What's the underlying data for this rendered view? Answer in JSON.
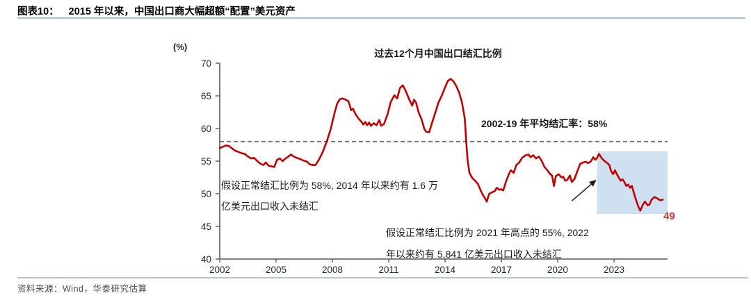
{
  "header": {
    "label": "图表10：",
    "title": "2015 年以来，中国出口商大幅超额“配置”美元资产"
  },
  "footer": {
    "source": "资料来源：Wind，华泰研究估算"
  },
  "chart_data": {
    "type": "line",
    "title": "过去12个月中国出口结汇比例",
    "unit_label": "(%)",
    "xlabel": "",
    "ylabel": "(%)",
    "xlim": [
      2002,
      2025.85
    ],
    "ylim": [
      40,
      70
    ],
    "x_ticks": [
      2002,
      2005,
      2008,
      2011,
      2014,
      2017,
      2020,
      2023
    ],
    "y_ticks": [
      40,
      45,
      50,
      55,
      60,
      65,
      70
    ],
    "grid": false,
    "legend": "none",
    "axis_color": "#595959",
    "tick_label_color": "#262626",
    "reference_line": {
      "value": 58,
      "style": "dashed",
      "color": "#6e6e6e",
      "label": "2002-19 年平均结汇率：58%"
    },
    "highlight_region": {
      "x0": 2022.1,
      "x1": 2025.85,
      "y0": 46.9,
      "y1": 56.5,
      "color": "#cfe1f0",
      "meaning": "2022 年以来"
    },
    "arrow": {
      "from": [
        2020.75,
        48.9
      ],
      "to": [
        2022.0,
        52.0
      ],
      "color": "#1a1a1a"
    },
    "end_label": {
      "text": "49",
      "color": "#cb3a36"
    },
    "annotations": [
      {
        "lines": [
          "假设正常结汇比例为 58%, 2014 年以来约有 1.6 万",
          "亿美元出口收入未结汇"
        ]
      },
      {
        "lines": [
          "假设正常结汇比例为 2021 年高点的 55%, 2022",
          "年以来约有 5,841 亿美元出口收入未结汇"
        ]
      }
    ],
    "series": [
      {
        "name": "过去12个月中国出口结汇比例",
        "color": "#c00000",
        "points": [
          [
            2002.0,
            57.0
          ],
          [
            2002.17,
            57.2
          ],
          [
            2002.33,
            57.4
          ],
          [
            2002.5,
            57.3
          ],
          [
            2002.67,
            56.9
          ],
          [
            2002.83,
            56.6
          ],
          [
            2003.0,
            56.4
          ],
          [
            2003.17,
            56.2
          ],
          [
            2003.33,
            56.1
          ],
          [
            2003.5,
            55.7
          ],
          [
            2003.67,
            55.4
          ],
          [
            2003.83,
            55.5
          ],
          [
            2004.0,
            55.0
          ],
          [
            2004.17,
            54.6
          ],
          [
            2004.33,
            54.4
          ],
          [
            2004.45,
            54.8
          ],
          [
            2004.6,
            54.3
          ],
          [
            2004.75,
            54.2
          ],
          [
            2004.9,
            54.1
          ],
          [
            2005.05,
            55.2
          ],
          [
            2005.2,
            55.4
          ],
          [
            2005.35,
            55.0
          ],
          [
            2005.5,
            55.4
          ],
          [
            2005.65,
            55.7
          ],
          [
            2005.8,
            56.0
          ],
          [
            2006.0,
            55.6
          ],
          [
            2006.2,
            55.4
          ],
          [
            2006.45,
            55.1
          ],
          [
            2006.65,
            54.9
          ],
          [
            2006.8,
            54.5
          ],
          [
            2006.95,
            54.4
          ],
          [
            2007.1,
            54.4
          ],
          [
            2007.3,
            55.3
          ],
          [
            2007.5,
            56.5
          ],
          [
            2007.7,
            58.0
          ],
          [
            2007.9,
            59.8
          ],
          [
            2008.1,
            62.2
          ],
          [
            2008.25,
            63.8
          ],
          [
            2008.4,
            64.5
          ],
          [
            2008.55,
            64.6
          ],
          [
            2008.7,
            64.4
          ],
          [
            2008.85,
            64.2
          ],
          [
            2009.0,
            62.8
          ],
          [
            2009.1,
            63.0
          ],
          [
            2009.25,
            62.1
          ],
          [
            2009.4,
            61.5
          ],
          [
            2009.55,
            61.0
          ],
          [
            2009.65,
            60.6
          ],
          [
            2009.75,
            61.0
          ],
          [
            2009.85,
            60.5
          ],
          [
            2009.95,
            60.9
          ],
          [
            2010.05,
            60.4
          ],
          [
            2010.2,
            60.8
          ],
          [
            2010.35,
            60.5
          ],
          [
            2010.5,
            61.3
          ],
          [
            2010.6,
            60.4
          ],
          [
            2010.75,
            60.7
          ],
          [
            2010.95,
            62.3
          ],
          [
            2011.1,
            64.0
          ],
          [
            2011.3,
            65.1
          ],
          [
            2011.45,
            64.6
          ],
          [
            2011.6,
            66.2
          ],
          [
            2011.75,
            66.6
          ],
          [
            2011.9,
            65.8
          ],
          [
            2012.0,
            65.1
          ],
          [
            2012.1,
            64.4
          ],
          [
            2012.25,
            63.5
          ],
          [
            2012.35,
            64.4
          ],
          [
            2012.45,
            64.0
          ],
          [
            2012.6,
            62.4
          ],
          [
            2012.75,
            61.4
          ],
          [
            2012.9,
            59.9
          ],
          [
            2013.0,
            59.5
          ],
          [
            2013.15,
            59.4
          ],
          [
            2013.3,
            60.8
          ],
          [
            2013.5,
            62.6
          ],
          [
            2013.65,
            64.0
          ],
          [
            2013.85,
            65.2
          ],
          [
            2014.0,
            66.3
          ],
          [
            2014.15,
            67.3
          ],
          [
            2014.3,
            67.6
          ],
          [
            2014.45,
            67.2
          ],
          [
            2014.6,
            66.5
          ],
          [
            2014.75,
            65.5
          ],
          [
            2014.9,
            64.0
          ],
          [
            2015.05,
            61.5
          ],
          [
            2015.12,
            58.2
          ],
          [
            2015.2,
            55.2
          ],
          [
            2015.3,
            53.2
          ],
          [
            2015.45,
            52.4
          ],
          [
            2015.6,
            52.0
          ],
          [
            2015.75,
            51.5
          ],
          [
            2015.9,
            50.5
          ],
          [
            2016.0,
            49.9
          ],
          [
            2016.15,
            49.2
          ],
          [
            2016.22,
            48.8
          ],
          [
            2016.35,
            50.0
          ],
          [
            2016.5,
            50.2
          ],
          [
            2016.65,
            50.4
          ],
          [
            2016.75,
            50.9
          ],
          [
            2016.9,
            50.6
          ],
          [
            2017.0,
            50.7
          ],
          [
            2017.1,
            50.5
          ],
          [
            2017.25,
            51.9
          ],
          [
            2017.4,
            53.0
          ],
          [
            2017.5,
            53.6
          ],
          [
            2017.65,
            53.2
          ],
          [
            2017.8,
            54.4
          ],
          [
            2017.95,
            54.8
          ],
          [
            2018.1,
            55.5
          ],
          [
            2018.3,
            55.9
          ],
          [
            2018.45,
            56.0
          ],
          [
            2018.55,
            55.6
          ],
          [
            2018.7,
            55.9
          ],
          [
            2018.85,
            55.4
          ],
          [
            2019.0,
            55.7
          ],
          [
            2019.15,
            55.0
          ],
          [
            2019.3,
            54.1
          ],
          [
            2019.45,
            53.6
          ],
          [
            2019.6,
            53.0
          ],
          [
            2019.7,
            52.8
          ],
          [
            2019.8,
            51.2
          ],
          [
            2019.9,
            52.7
          ],
          [
            2020.05,
            53.0
          ],
          [
            2020.2,
            52.5
          ],
          [
            2020.3,
            52.6
          ],
          [
            2020.4,
            52.0
          ],
          [
            2020.5,
            52.1
          ],
          [
            2020.65,
            52.8
          ],
          [
            2020.75,
            51.8
          ],
          [
            2020.9,
            52.3
          ],
          [
            2021.05,
            53.5
          ],
          [
            2021.2,
            54.6
          ],
          [
            2021.35,
            54.8
          ],
          [
            2021.5,
            54.9
          ],
          [
            2021.6,
            54.7
          ],
          [
            2021.75,
            54.9
          ],
          [
            2021.9,
            55.6
          ],
          [
            2022.0,
            55.2
          ],
          [
            2022.1,
            55.5
          ],
          [
            2022.2,
            56.1
          ],
          [
            2022.35,
            55.4
          ],
          [
            2022.5,
            55.0
          ],
          [
            2022.6,
            54.8
          ],
          [
            2022.75,
            54.4
          ],
          [
            2022.85,
            53.4
          ],
          [
            2022.95,
            53.0
          ],
          [
            2023.05,
            53.6
          ],
          [
            2023.15,
            53.0
          ],
          [
            2023.25,
            52.5
          ],
          [
            2023.35,
            52.0
          ],
          [
            2023.45,
            52.2
          ],
          [
            2023.55,
            51.8
          ],
          [
            2023.65,
            51.2
          ],
          [
            2023.75,
            51.4
          ],
          [
            2023.85,
            50.9
          ],
          [
            2023.95,
            51.2
          ],
          [
            2024.05,
            50.2
          ],
          [
            2024.2,
            48.8
          ],
          [
            2024.3,
            48.0
          ],
          [
            2024.4,
            47.4
          ],
          [
            2024.55,
            48.4
          ],
          [
            2024.65,
            48.8
          ],
          [
            2024.8,
            48.2
          ],
          [
            2024.9,
            48.4
          ],
          [
            2025.0,
            49.1
          ],
          [
            2025.15,
            49.5
          ],
          [
            2025.3,
            49.3
          ],
          [
            2025.45,
            49.0
          ],
          [
            2025.6,
            49.1
          ]
        ]
      }
    ]
  }
}
